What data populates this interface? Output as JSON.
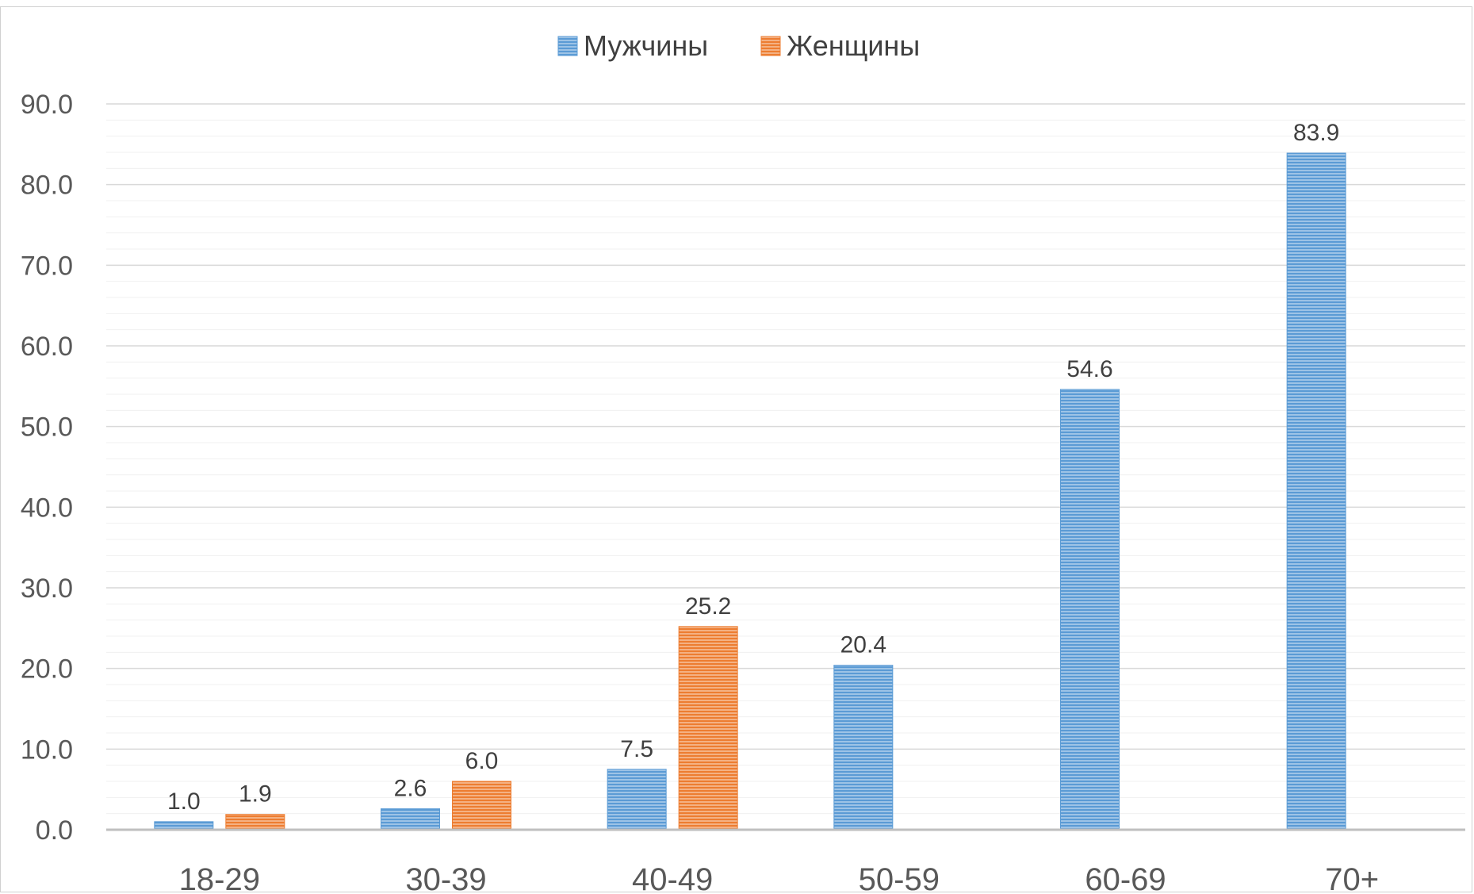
{
  "chart_data": {
    "type": "bar",
    "categories": [
      "18-29",
      "30-39",
      "40-49",
      "50-59",
      "60-69",
      "70+"
    ],
    "series": [
      {
        "name": "Мужчины",
        "values": [
          1.0,
          2.6,
          7.5,
          20.4,
          54.6,
          83.9
        ],
        "color": "#5b9bd5"
      },
      {
        "name": "Женщины",
        "values": [
          1.9,
          6.0,
          25.2,
          null,
          null,
          null
        ],
        "color": "#ed7d31"
      }
    ],
    "title": "",
    "xlabel": "",
    "ylabel": "",
    "ylim": [
      0,
      90
    ],
    "yticks": [
      "0.0",
      "10.0",
      "20.0",
      "30.0",
      "40.0",
      "50.0",
      "60.0",
      "70.0",
      "80.0",
      "90.0"
    ],
    "grid": true,
    "legend_position": "top-center",
    "bar_fill": "horizontal-striped"
  }
}
